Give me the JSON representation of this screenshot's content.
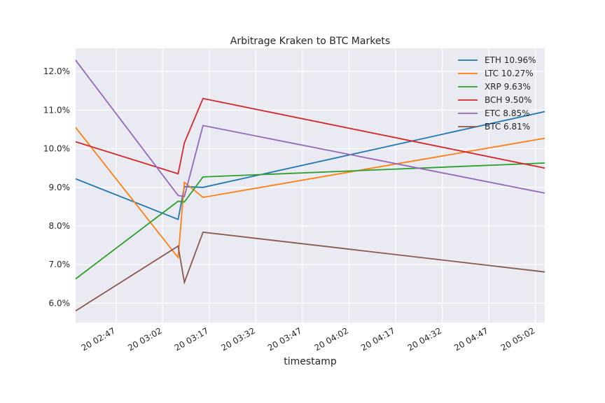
{
  "chart_data": {
    "type": "line",
    "title": "Arbitrage Kraken to BTC Markets",
    "xlabel": "timestamp",
    "ylabel": "",
    "xlim_minutes_from_02_34": [
      0,
      151
    ],
    "ylim": [
      5.5,
      12.6
    ],
    "y_ticks": [
      6.0,
      7.0,
      8.0,
      9.0,
      10.0,
      11.0,
      12.0
    ],
    "y_tick_labels": [
      "6.0%",
      "7.0%",
      "8.0%",
      "9.0%",
      "10.0%",
      "11.0%",
      "12.0%"
    ],
    "x_ticks": [
      "20 02:47",
      "20 03:02",
      "20 03:17",
      "20 03:32",
      "20 03:47",
      "20 04:02",
      "20 04:17",
      "20 04:32",
      "20 04:47",
      "20 05:02"
    ],
    "grid": true,
    "legend_position": "top-right",
    "x": [
      "02:34",
      "03:07",
      "03:09",
      "03:15",
      "05:05"
    ],
    "series": [
      {
        "name": "ETH 10.96%",
        "color": "#1f77b4",
        "values": [
          9.22,
          8.17,
          9.02,
          9.0,
          10.96
        ]
      },
      {
        "name": "LTC 10.27%",
        "color": "#ff7f0e",
        "values": [
          10.55,
          7.18,
          9.13,
          8.74,
          10.27
        ]
      },
      {
        "name": "XRP 9.63%",
        "color": "#2ca02c",
        "values": [
          6.63,
          8.64,
          8.62,
          9.27,
          9.63
        ]
      },
      {
        "name": "BCH 9.50%",
        "color": "#d62728",
        "values": [
          10.18,
          9.35,
          10.15,
          11.3,
          9.5
        ]
      },
      {
        "name": "ETC 8.85%",
        "color": "#9467bd",
        "values": [
          12.29,
          8.79,
          8.76,
          10.6,
          8.85
        ]
      },
      {
        "name": "BTC 6.81%",
        "color": "#8c564b",
        "values": [
          5.8,
          7.48,
          6.54,
          7.84,
          6.81
        ]
      }
    ]
  }
}
